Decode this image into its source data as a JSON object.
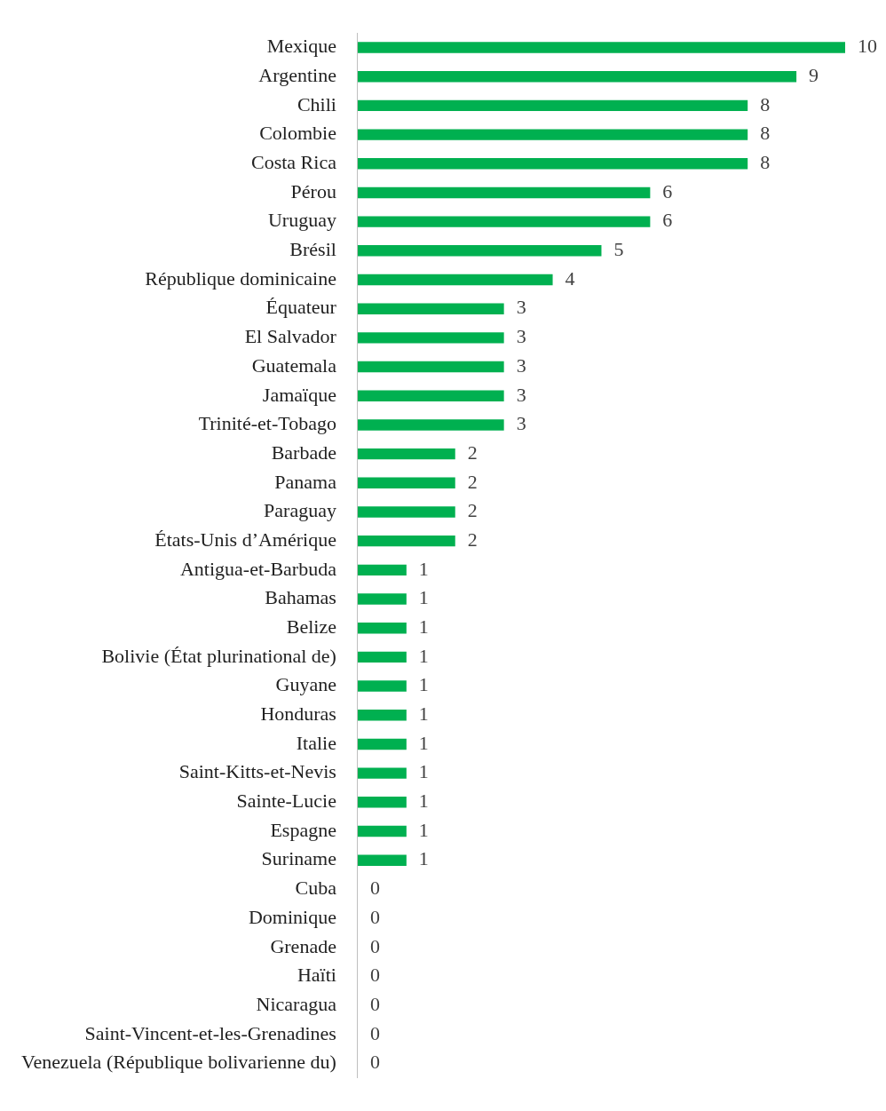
{
  "chart_data": {
    "type": "bar",
    "orientation": "horizontal",
    "data_labels": true,
    "color": "#00b050",
    "categories": [
      "Mexique",
      "Argentine",
      "Chili",
      "Colombie",
      "Costa Rica",
      "Pérou",
      "Uruguay",
      "Brésil",
      "République dominicaine",
      "Équateur",
      "El Salvador",
      "Guatemala",
      "Jamaïque",
      "Trinité-et-Tobago",
      "Barbade",
      "Panama",
      "Paraguay",
      "États-Unis d’Amérique",
      "Antigua-et-Barbuda",
      "Bahamas",
      "Belize",
      "Bolivie (État plurinational de)",
      "Guyane",
      "Honduras",
      "Italie",
      "Saint-Kitts-et-Nevis",
      "Sainte-Lucie",
      "Espagne",
      "Suriname",
      "Cuba",
      "Dominique",
      "Grenade",
      "Haïti",
      "Nicaragua",
      "Saint-Vincent-et-les-Grenadines",
      "Venezuela (République bolivarienne du)"
    ],
    "values": [
      10,
      9,
      8,
      8,
      8,
      6,
      6,
      5,
      4,
      3,
      3,
      3,
      3,
      3,
      2,
      2,
      2,
      2,
      1,
      1,
      1,
      1,
      1,
      1,
      1,
      1,
      1,
      1,
      1,
      0,
      0,
      0,
      0,
      0,
      0,
      0
    ]
  }
}
